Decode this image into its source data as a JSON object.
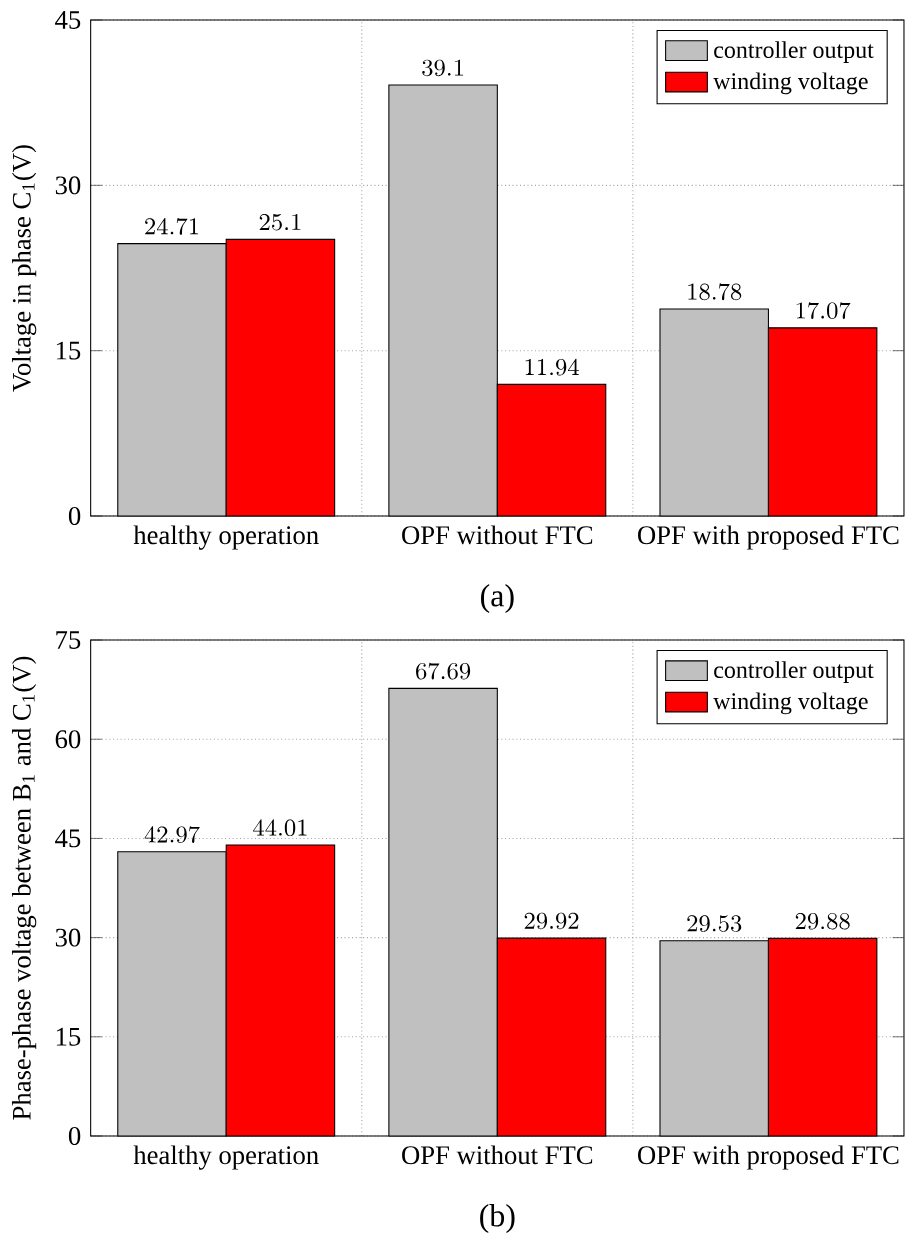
{
  "chart_data": [
    {
      "type": "bar",
      "categories": [
        "healthy operation",
        "OPF without FTC",
        "OPF with proposed FTC"
      ],
      "ylabel": "Voltage in phase C$_{1}$(V)",
      "annotations": [
        "(a)"
      ],
      "series": [
        {
          "name": "controller output",
          "color": "#c0c0c0",
          "values": [
            24.71,
            39.1,
            18.78
          ]
        },
        {
          "name": "winding voltage",
          "color": "#ff0000",
          "values": [
            25.1,
            11.94,
            17.07
          ]
        }
      ],
      "ylim": [
        0,
        45
      ],
      "yticks": [
        0,
        15,
        30,
        45
      ],
      "grid": true,
      "legend": "top right",
      "data_labels": true
    },
    {
      "type": "bar",
      "categories": [
        "healthy operation",
        "OPF without FTC",
        "OPF with proposed FTC"
      ],
      "ylabel": "Phase-phase voltage between B$_{1}$ and C$_{1}$(V)",
      "annotations": [
        "(b)"
      ],
      "series": [
        {
          "name": "controller output",
          "color": "#c0c0c0",
          "values": [
            42.97,
            67.69,
            29.53
          ]
        },
        {
          "name": "winding voltage",
          "color": "#ff0000",
          "values": [
            44.01,
            29.92,
            29.88
          ]
        }
      ],
      "ylim": [
        0,
        75
      ],
      "yticks": [
        0,
        15,
        30,
        45,
        60,
        75
      ],
      "grid": true,
      "legend": "top right",
      "data_labels": true
    }
  ]
}
